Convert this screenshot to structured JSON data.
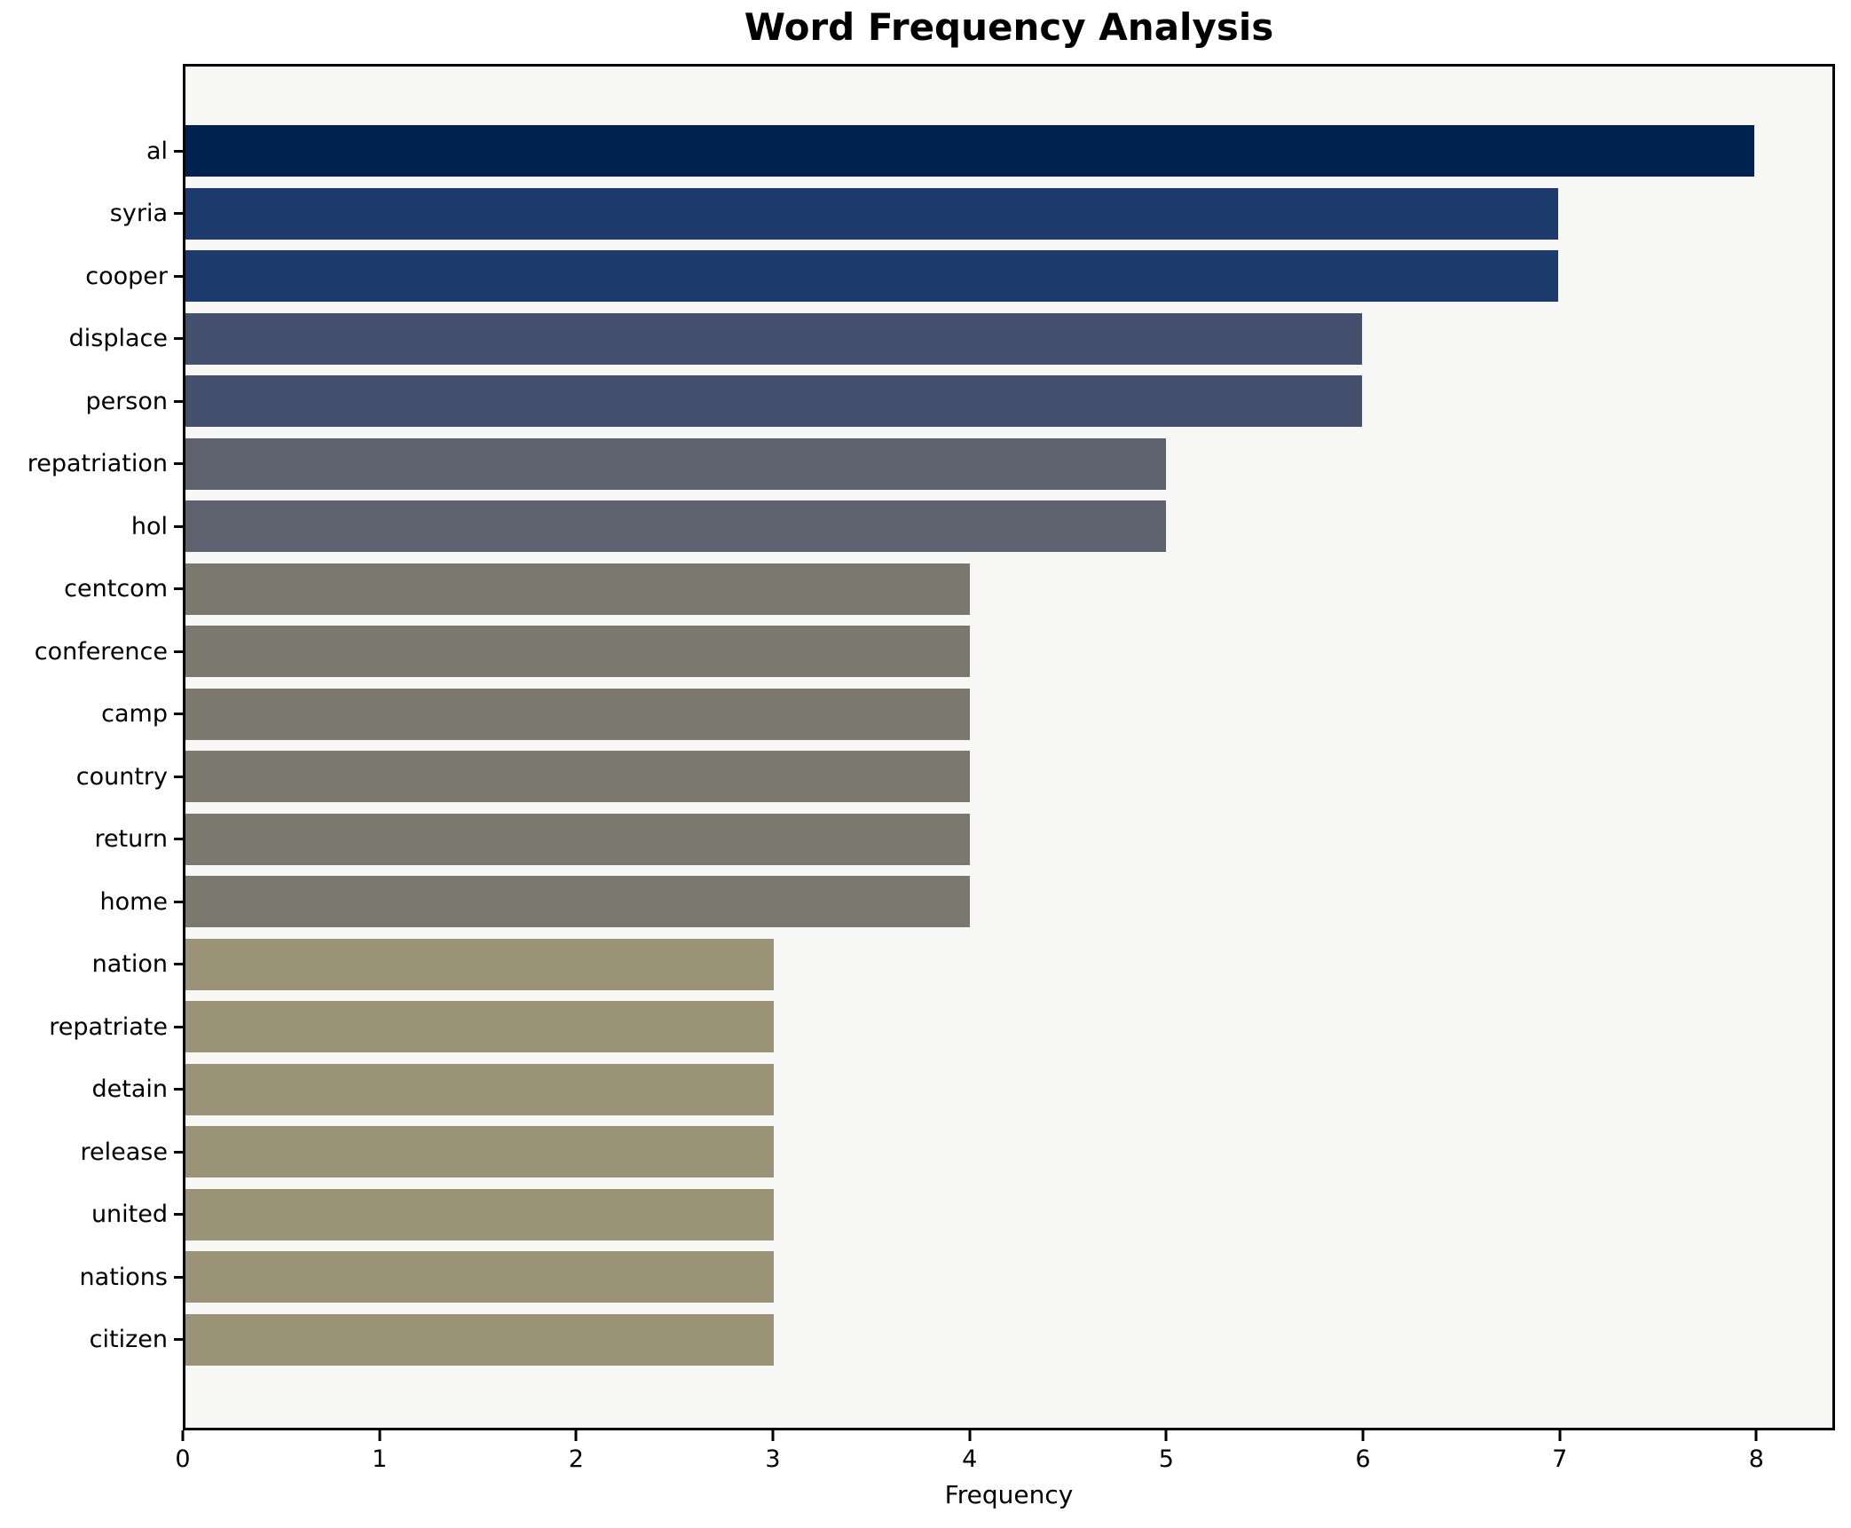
{
  "chart_data": {
    "type": "bar",
    "orientation": "horizontal",
    "title": "Word Frequency Analysis",
    "xlabel": "Frequency",
    "ylabel": "",
    "categories": [
      "al",
      "syria",
      "cooper",
      "displace",
      "person",
      "repatriation",
      "hol",
      "centcom",
      "conference",
      "camp",
      "country",
      "return",
      "home",
      "nation",
      "repatriate",
      "detain",
      "release",
      "united",
      "nations",
      "citizen"
    ],
    "values": [
      8,
      7,
      7,
      6,
      6,
      5,
      5,
      4,
      4,
      4,
      4,
      4,
      4,
      3,
      3,
      3,
      3,
      3,
      3,
      3
    ],
    "bar_colors": [
      "#00224e",
      "#1d3a6d",
      "#1d3a6d",
      "#454f6e",
      "#454f6e",
      "#5d626e",
      "#5d626e",
      "#7b786f",
      "#7b786f",
      "#7b786f",
      "#7b786f",
      "#7b786f",
      "#7b786f",
      "#9a9377",
      "#9a9377",
      "#9a9377",
      "#9a9377",
      "#9a9377",
      "#9a9377",
      "#9a9377"
    ],
    "xticks": [
      0,
      1,
      2,
      3,
      4,
      5,
      6,
      7,
      8
    ],
    "xlim": [
      0,
      8.4
    ],
    "grid": false,
    "legend": "none",
    "plot_background": "#f7f7f6",
    "figure_background": "#ffffff",
    "spine_color": "#000000"
  }
}
